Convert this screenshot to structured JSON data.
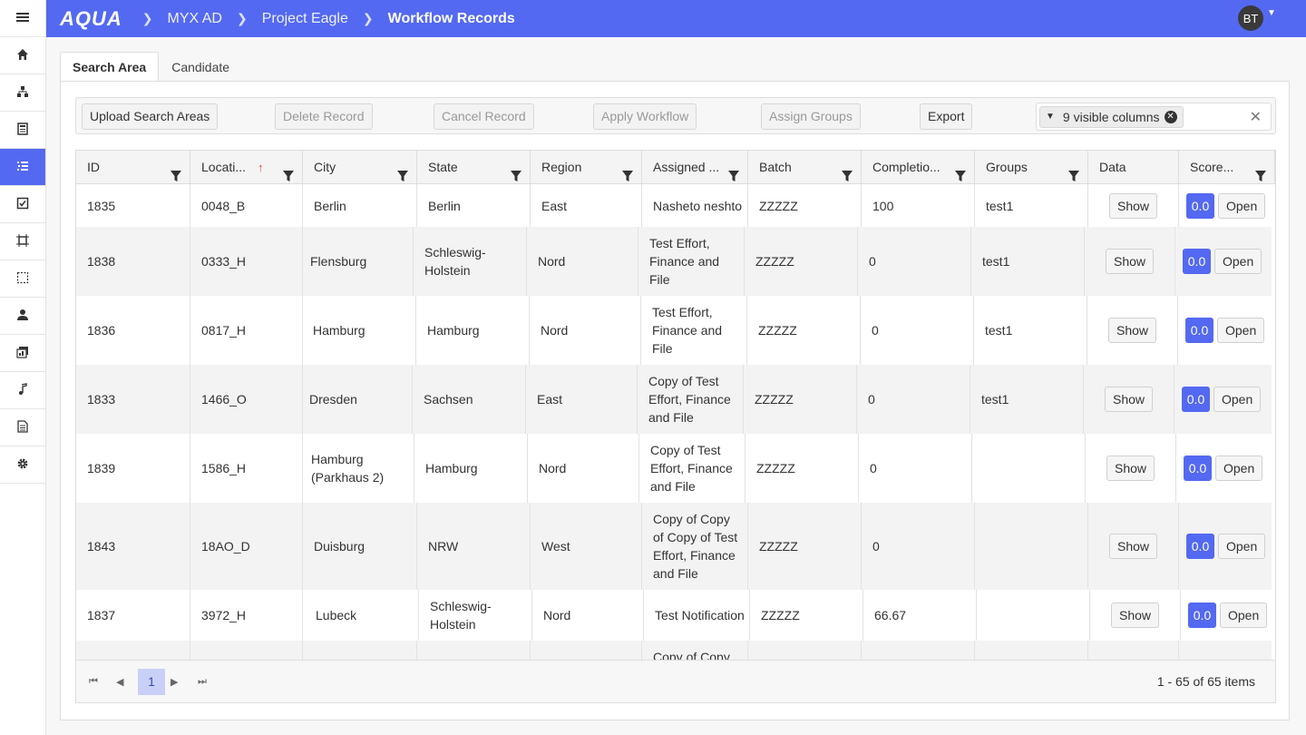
{
  "header": {
    "logo": "AQUA",
    "breadcrumbs": [
      "MYX AD",
      "Project Eagle",
      "Workflow Records"
    ],
    "avatar_initials": "BT"
  },
  "sidebar": {
    "icons": [
      "menu-icon",
      "home-icon",
      "hierarchy-icon",
      "calculator-icon",
      "list-icon",
      "checkbox-icon",
      "frame-icon",
      "selection-icon",
      "user-icon",
      "stack-icon",
      "music-note-icon",
      "document-icon",
      "gear-icon"
    ],
    "bottom_icon": "star-icon",
    "active_index": 4,
    "accent": "#5469f1"
  },
  "tabs": [
    "Search Area",
    "Candidate"
  ],
  "toolbar": {
    "upload": "Upload Search Areas",
    "delete": "Delete Record",
    "cancel": "Cancel Record",
    "apply": "Apply Workflow",
    "assign": "Assign Groups",
    "export": "Export",
    "columns_chip": "9 visible columns"
  },
  "grid": {
    "headers": [
      "ID",
      "Locati...",
      "City",
      "State",
      "Region",
      "Assigned ...",
      "Batch",
      "Completio...",
      "Groups",
      "Data",
      "Score..."
    ],
    "rows": [
      {
        "id": "1835",
        "location": "0048_B",
        "city": "Berlin",
        "state": "Berlin",
        "region": "East",
        "assigned": "Nasheto neshto",
        "batch": "ZZZZZ",
        "completion": "100",
        "groups": "test1",
        "data": "Show",
        "score": "0.0",
        "open": "Open"
      },
      {
        "id": "1838",
        "location": "0333_H",
        "city": "Flensburg",
        "state": "Schleswig-Holstein",
        "region": "Nord",
        "assigned": "Test Effort, Finance and File",
        "batch": "ZZZZZ",
        "completion": "0",
        "groups": "test1",
        "data": "Show",
        "score": "0.0",
        "open": "Open"
      },
      {
        "id": "1836",
        "location": "0817_H",
        "city": "Hamburg",
        "state": "Hamburg",
        "region": "Nord",
        "assigned": "Test Effort, Finance and File",
        "batch": "ZZZZZ",
        "completion": "0",
        "groups": "test1",
        "data": "Show",
        "score": "0.0",
        "open": "Open"
      },
      {
        "id": "1833",
        "location": "1466_O",
        "city": "Dresden",
        "state": "Sachsen",
        "region": "East",
        "assigned": "Copy of Test Effort, Finance and File",
        "batch": "ZZZZZ",
        "completion": "0",
        "groups": "test1",
        "data": "Show",
        "score": "0.0",
        "open": "Open"
      },
      {
        "id": "1839",
        "location": "1586_H",
        "city": "Hamburg (Parkhaus 2)",
        "state": "Hamburg",
        "region": "Nord",
        "assigned": "Copy of Test Effort, Finance and File",
        "batch": "ZZZZZ",
        "completion": "0",
        "groups": "",
        "data": "Show",
        "score": "0.0",
        "open": "Open"
      },
      {
        "id": "1843",
        "location": "18AO_D",
        "city": "Duisburg",
        "state": "NRW",
        "region": "West",
        "assigned": "Copy of Copy of Copy of Test Effort, Finance and File",
        "batch": "ZZZZZ",
        "completion": "0",
        "groups": "",
        "data": "Show",
        "score": "0.0",
        "open": "Open"
      },
      {
        "id": "1837",
        "location": "3972_H",
        "city": "Lubeck",
        "state": "Schleswig-Holstein",
        "region": "Nord",
        "assigned": "Test Notification",
        "batch": "ZZZZZ",
        "completion": "66.67",
        "groups": "",
        "data": "Show",
        "score": "0.0",
        "open": "Open"
      },
      {
        "id": "",
        "location": "",
        "city": "",
        "state": "",
        "region": "",
        "assigned": "Copy of Copy",
        "batch": "",
        "completion": "",
        "groups": "",
        "data": "",
        "score": "",
        "open": ""
      }
    ]
  },
  "pager": {
    "current_page": "1",
    "info": "1 - 65 of 65 items"
  }
}
